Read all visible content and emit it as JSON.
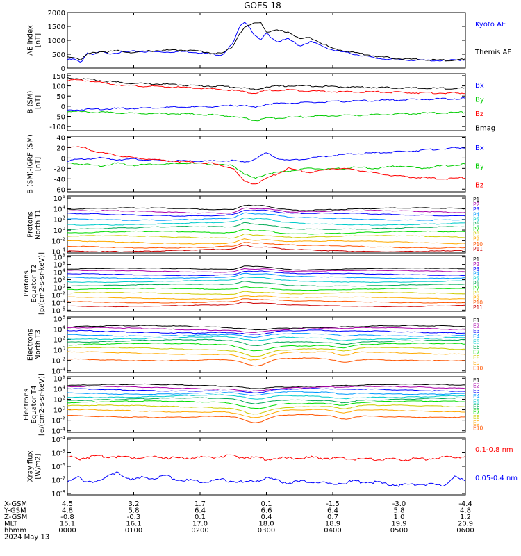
{
  "title": "GOES-18",
  "colors": {
    "axis": "#000000",
    "blue": "#0000ff",
    "green": "#00dd00",
    "red": "#ff0000",
    "black": "#000000",
    "channels": [
      "#000000",
      "#aa00aa",
      "#0000ff",
      "#0099ff",
      "#00cccc",
      "#00aa55",
      "#00dd00",
      "#cccc00",
      "#ffaa00",
      "#ff5500",
      "#cc0000"
    ]
  },
  "chart_data": [
    {
      "id": "ae",
      "type": "line",
      "ylabel": [
        "AE index",
        "[nT]"
      ],
      "ylim": [
        0,
        2000
      ],
      "yticks": [
        "0",
        "500",
        "1000",
        "1500",
        "2000"
      ],
      "ytick_values": [
        0,
        500,
        1000,
        1500,
        2000
      ],
      "legend": [
        {
          "name": "Kyoto AE",
          "color": "#0000ff"
        },
        {
          "name": "Themis AE",
          "color": "#000000"
        }
      ],
      "series": [
        {
          "name": "Kyoto AE",
          "color": "#0000ff",
          "x": [
            0,
            6,
            12,
            18,
            24,
            30,
            36,
            45,
            60,
            75,
            90,
            105,
            120,
            130,
            140,
            150,
            155,
            160,
            165,
            170,
            175,
            180,
            190,
            200,
            210,
            220,
            240,
            260,
            280,
            300,
            320,
            340,
            360
          ],
          "y": [
            300,
            320,
            200,
            550,
            480,
            600,
            520,
            560,
            600,
            590,
            580,
            600,
            560,
            500,
            480,
            900,
            1400,
            1700,
            1450,
            1150,
            1000,
            1250,
            950,
            1050,
            800,
            950,
            650,
            500,
            350,
            300,
            280,
            270,
            300
          ]
        },
        {
          "name": "Themis AE",
          "color": "#000000",
          "x": [
            0,
            6,
            12,
            18,
            24,
            30,
            36,
            45,
            60,
            75,
            90,
            105,
            120,
            130,
            140,
            150,
            155,
            160,
            165,
            170,
            175,
            180,
            190,
            200,
            210,
            220,
            240,
            260,
            280,
            300,
            320,
            340,
            360
          ],
          "y": [
            400,
            400,
            300,
            500,
            550,
            600,
            580,
            620,
            560,
            620,
            640,
            650,
            610,
            550,
            520,
            800,
            1200,
            1450,
            1550,
            1620,
            1650,
            1300,
            1350,
            1300,
            1050,
            1100,
            700,
            560,
            420,
            340,
            300,
            280,
            310
          ]
        }
      ]
    },
    {
      "id": "bsm",
      "type": "line",
      "ylabel": [
        "B (SM)",
        "[nT]"
      ],
      "ylim": [
        -120,
        160
      ],
      "yticks": [
        "-100",
        "-50",
        "0",
        "50",
        "100",
        "150"
      ],
      "ytick_values": [
        -100,
        -50,
        0,
        50,
        100,
        150
      ],
      "legend": [
        {
          "name": "Bx",
          "color": "#0000ff"
        },
        {
          "name": "By",
          "color": "#00cc00"
        },
        {
          "name": "Bz",
          "color": "#ff0000"
        },
        {
          "name": "Bmag",
          "color": "#000000"
        }
      ],
      "series": [
        {
          "name": "Bmag",
          "color": "#000000",
          "x": [
            0,
            20,
            40,
            60,
            90,
            120,
            140,
            160,
            170,
            180,
            200,
            220,
            250,
            280,
            320,
            360
          ],
          "y": [
            140,
            132,
            120,
            112,
            108,
            100,
            98,
            90,
            80,
            95,
            100,
            100,
            95,
            92,
            88,
            88
          ]
        },
        {
          "name": "Bz",
          "color": "#ff0000",
          "x": [
            0,
            20,
            40,
            60,
            90,
            120,
            140,
            160,
            170,
            180,
            200,
            220,
            250,
            280,
            320,
            360
          ],
          "y": [
            130,
            125,
            108,
            100,
            95,
            88,
            82,
            72,
            62,
            78,
            80,
            75,
            70,
            70,
            66,
            64
          ]
        },
        {
          "name": "Bx",
          "color": "#0000ff",
          "x": [
            0,
            20,
            40,
            60,
            90,
            120,
            140,
            160,
            170,
            180,
            200,
            220,
            250,
            280,
            320,
            360
          ],
          "y": [
            -20,
            -15,
            -12,
            -10,
            -6,
            -3,
            0,
            5,
            -8,
            12,
            15,
            18,
            24,
            28,
            34,
            38
          ]
        },
        {
          "name": "By",
          "color": "#00cc00",
          "x": [
            0,
            20,
            40,
            60,
            90,
            120,
            140,
            160,
            170,
            180,
            200,
            220,
            250,
            280,
            320,
            360
          ],
          "y": [
            -25,
            -28,
            -32,
            -35,
            -36,
            -40,
            -45,
            -58,
            -70,
            -60,
            -55,
            -50,
            -45,
            -42,
            -35,
            -30
          ]
        }
      ]
    },
    {
      "id": "bigrf",
      "type": "line",
      "ylabel": [
        "B (SM)-IGRF (SM)",
        "[nT]"
      ],
      "ylim": [
        -65,
        42
      ],
      "yticks": [
        "-60",
        "-40",
        "-20",
        "0",
        "20",
        "40"
      ],
      "ytick_values": [
        -60,
        -40,
        -20,
        0,
        20,
        40
      ],
      "legend": [
        {
          "name": "Bx",
          "color": "#0000ff"
        },
        {
          "name": "By",
          "color": "#00cc00"
        },
        {
          "name": "Bz",
          "color": "#ff0000"
        }
      ],
      "series": [
        {
          "name": "Bx",
          "color": "#0000ff",
          "x": [
            0,
            15,
            30,
            45,
            60,
            75,
            90,
            110,
            130,
            150,
            160,
            170,
            180,
            190,
            200,
            220,
            240,
            260,
            280,
            300,
            320,
            340,
            360
          ],
          "y": [
            -5,
            -2,
            0,
            -3,
            -2,
            -4,
            -5,
            -6,
            -6,
            -5,
            -8,
            -2,
            10,
            0,
            -5,
            0,
            5,
            8,
            10,
            12,
            15,
            18,
            20
          ]
        },
        {
          "name": "By",
          "color": "#00cc00",
          "x": [
            0,
            15,
            30,
            45,
            60,
            75,
            90,
            110,
            130,
            150,
            160,
            170,
            180,
            190,
            200,
            220,
            240,
            260,
            280,
            300,
            320,
            340,
            360
          ],
          "y": [
            -10,
            -12,
            -15,
            -10,
            -14,
            -12,
            -12,
            -10,
            -12,
            -15,
            -30,
            -40,
            -30,
            -28,
            -25,
            -20,
            -22,
            -18,
            -20,
            -15,
            -20,
            -15,
            -12
          ]
        },
        {
          "name": "Bz",
          "color": "#ff0000",
          "x": [
            0,
            15,
            30,
            45,
            60,
            75,
            90,
            110,
            130,
            150,
            160,
            170,
            180,
            190,
            200,
            220,
            240,
            260,
            280,
            300,
            320,
            340,
            360
          ],
          "y": [
            22,
            20,
            10,
            5,
            0,
            -2,
            -5,
            -8,
            -10,
            -20,
            -45,
            -50,
            -40,
            -30,
            -20,
            -28,
            -20,
            -22,
            -30,
            -35,
            -38,
            -40,
            -38
          ]
        }
      ]
    },
    {
      "id": "protons_n",
      "type": "line",
      "scale": "log",
      "ylabel": [
        "Protons",
        "North T1"
      ],
      "ylim_exp": [
        -4.3,
        6.4
      ],
      "yticks": [
        "10-4",
        "10-2",
        "100",
        "102",
        "104",
        "106"
      ],
      "ytick_exp": [
        -4,
        -2,
        0,
        2,
        4,
        6
      ],
      "legend": [
        "P1",
        "P2",
        "P3",
        "P4",
        "P5",
        "P6",
        "P7",
        "P8",
        "P9",
        "P10",
        "P11"
      ],
      "channel_levels": [
        3.9,
        3.4,
        2.9,
        2.1,
        1.2,
        0.4,
        -0.5,
        -1.3,
        -2.3,
        -3.1,
        -3.8
      ]
    },
    {
      "id": "protons_e",
      "type": "line",
      "scale": "log",
      "ylabel": [
        "Protons",
        "Equator T2",
        "[p/(cm2-s-sr-keV)]"
      ],
      "ylim_exp": [
        -6.3,
        8.3
      ],
      "yticks": [
        "10-6",
        "10-4",
        "10-2",
        "100",
        "102",
        "104",
        "106",
        "108"
      ],
      "ytick_exp": [
        -6,
        -4,
        -2,
        0,
        2,
        4,
        6,
        8
      ],
      "legend": [
        "P1",
        "P2",
        "P3",
        "P4",
        "P5",
        "P6",
        "P7",
        "P8",
        "P9",
        "P10",
        "P11"
      ],
      "channel_levels": [
        4.8,
        4.2,
        3.4,
        2.6,
        1.6,
        0.6,
        -0.5,
        -1.6,
        -2.8,
        -3.8,
        -4.8
      ]
    },
    {
      "id": "electrons_n",
      "type": "line",
      "scale": "log",
      "ylabel": [
        "Electrons",
        "North T3"
      ],
      "ylim_exp": [
        -4.3,
        6.3
      ],
      "yticks": [
        "10-4",
        "10-2",
        "100",
        "102",
        "104",
        "106"
      ],
      "ytick_exp": [
        -4,
        -2,
        0,
        2,
        4,
        6
      ],
      "legend": [
        "E1",
        "E2",
        "E3",
        "E4",
        "E5",
        "E6",
        "E7",
        "E8",
        "E9",
        "E10"
      ],
      "channel_levels": [
        4.4,
        4.0,
        3.5,
        2.9,
        2.3,
        1.7,
        1.0,
        0.2,
        -0.6,
        -1.8
      ]
    },
    {
      "id": "electrons_e",
      "type": "line",
      "scale": "log",
      "ylabel": [
        "Electrons",
        "Equator T4",
        "[e/(cm2-s-sr-keV)]"
      ],
      "ylim_exp": [
        -4.3,
        6.3
      ],
      "yticks": [
        "10-4",
        "10-2",
        "100",
        "102",
        "104",
        "106"
      ],
      "ytick_exp": [
        -4,
        -2,
        0,
        2,
        4,
        6
      ],
      "legend": [
        "E1",
        "E2",
        "E3",
        "E4",
        "E5",
        "E6",
        "E7",
        "E8",
        "E9",
        "E10"
      ],
      "channel_levels": [
        4.6,
        4.2,
        3.8,
        3.2,
        2.6,
        2.0,
        1.4,
        0.6,
        -0.2,
        -1.2
      ]
    },
    {
      "id": "xray",
      "type": "line",
      "scale": "log",
      "ylabel": [
        "Xray flux",
        "[W/m2]"
      ],
      "ylim_exp": [
        -8.1,
        -3.9
      ],
      "yticks": [
        "10-8",
        "10-7",
        "10-6",
        "10-5",
        "10-4"
      ],
      "ytick_exp": [
        -8,
        -7,
        -6,
        -5,
        -4
      ],
      "legend": [
        {
          "name": "0.1-0.8 nm",
          "color": "#ff0000"
        },
        {
          "name": "0.05-0.4 nm",
          "color": "#0000ff"
        }
      ],
      "series": [
        {
          "name": "0.1-0.8 nm",
          "color": "#ff0000",
          "x": [
            0,
            10,
            20,
            40,
            60,
            80,
            100,
            120,
            140,
            160,
            180,
            200,
            220,
            240,
            260,
            280,
            300,
            320,
            340,
            360
          ],
          "y_exp": [
            -5.3,
            -5.45,
            -5.3,
            -5.25,
            -5.35,
            -5.3,
            -5.4,
            -5.35,
            -5.25,
            -5.3,
            -5.45,
            -5.4,
            -5.35,
            -5.4,
            -5.45,
            -5.5,
            -5.5,
            -5.45,
            -5.35,
            -5.25
          ]
        },
        {
          "name": "0.05-0.4 nm",
          "color": "#0000ff",
          "x": [
            0,
            8,
            16,
            30,
            45,
            60,
            70,
            80,
            90,
            100,
            120,
            140,
            160,
            180,
            200,
            220,
            240,
            260,
            280,
            300,
            320,
            340,
            350,
            360
          ],
          "y_exp": [
            -7.1,
            -6.7,
            -7.2,
            -7.0,
            -6.5,
            -7.0,
            -6.8,
            -6.9,
            -6.7,
            -7.0,
            -7.1,
            -7.0,
            -7.2,
            -6.9,
            -7.2,
            -7.1,
            -7.3,
            -7.1,
            -7.2,
            -7.4,
            -7.3,
            -7.4,
            -6.8,
            -7.1
          ]
        }
      ]
    }
  ],
  "orbit_table": {
    "rows": [
      {
        "label": "X-GSM",
        "values": [
          "4.5",
          "3.2",
          "1.7",
          "0.1",
          "-1.5",
          "-3.0",
          "-4.4"
        ]
      },
      {
        "label": "Y-GSM",
        "values": [
          "4.8",
          "5.8",
          "6.4",
          "6.6",
          "6.4",
          "5.8",
          "4.8"
        ]
      },
      {
        "label": "Z-GSM",
        "values": [
          "-0.8",
          "-0.3",
          "0.1",
          "0.4",
          "0.7",
          "1.0",
          "1.2"
        ]
      },
      {
        "label": "MLT",
        "values": [
          "15.1",
          "16.1",
          "17.0",
          "18.0",
          "18.9",
          "19.9",
          "20.9"
        ]
      },
      {
        "label": "hhmm",
        "values": [
          "0000",
          "0100",
          "0200",
          "0300",
          "0400",
          "0500",
          "0600"
        ]
      }
    ],
    "date": "2024 May 13"
  }
}
